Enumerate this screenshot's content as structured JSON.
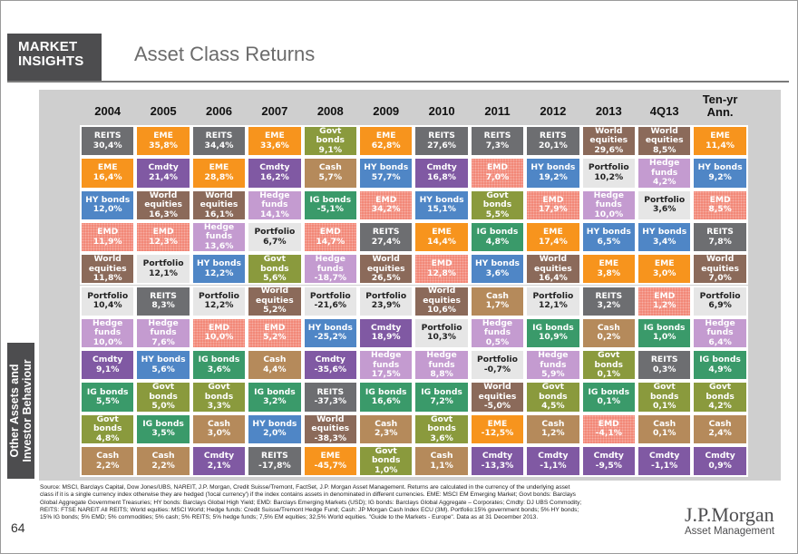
{
  "header": {
    "brand_line1": "MARKET",
    "brand_line2": "INSIGHTS",
    "title": "Asset Class Returns"
  },
  "sidebar": {
    "line1": "Other Assets and",
    "line2": "Investor Behaviour"
  },
  "page_number": "64",
  "colors": {
    "REITS": "#6d6e71",
    "EME": "#f7941d",
    "Cmdty": "#8059a3",
    "HY bonds": "#4f86c6",
    "World equities": "#8b6a5a",
    "Portfolio": "#e6e6e6",
    "Hedge funds": "#c49bd0",
    "EMD": "#f28474",
    "Govt bonds": "#8a9a3d",
    "Cash": "#b58a5b",
    "IG bonds": "#3a9a6a"
  },
  "chart_data": {
    "type": "table",
    "title": "Asset Class Returns",
    "columns": [
      "2004",
      "2005",
      "2006",
      "2007",
      "2008",
      "2009",
      "2010",
      "2011",
      "2012",
      "2013",
      "4Q13",
      "Ten-yr Ann."
    ],
    "rows": [
      [
        {
          "a": "REITS",
          "v": "30,4%"
        },
        {
          "a": "EME",
          "v": "35,8%"
        },
        {
          "a": "REITS",
          "v": "34,4%"
        },
        {
          "a": "EME",
          "v": "33,6%"
        },
        {
          "a": "Govt bonds",
          "v": "9,1%"
        },
        {
          "a": "EME",
          "v": "62,8%"
        },
        {
          "a": "REITS",
          "v": "27,6%"
        },
        {
          "a": "REITS",
          "v": "7,3%"
        },
        {
          "a": "REITS",
          "v": "20,1%"
        },
        {
          "a": "World equities",
          "v": "29,6%"
        },
        {
          "a": "World equities",
          "v": "8,5%"
        },
        {
          "a": "EME",
          "v": "11,4%"
        }
      ],
      [
        {
          "a": "EME",
          "v": "16,4%"
        },
        {
          "a": "Cmdty",
          "v": "21,4%"
        },
        {
          "a": "EME",
          "v": "28,8%"
        },
        {
          "a": "Cmdty",
          "v": "16,2%"
        },
        {
          "a": "Cash",
          "v": "5,7%"
        },
        {
          "a": "HY bonds",
          "v": "57,7%"
        },
        {
          "a": "Cmdty",
          "v": "16,8%"
        },
        {
          "a": "EMD",
          "v": "7,0%"
        },
        {
          "a": "HY bonds",
          "v": "19,2%"
        },
        {
          "a": "Portfolio",
          "v": "10,2%"
        },
        {
          "a": "Hedge funds",
          "v": "4,2%"
        },
        {
          "a": "HY bonds",
          "v": "9,2%"
        }
      ],
      [
        {
          "a": "HY bonds",
          "v": "12,0%"
        },
        {
          "a": "World equities",
          "v": "16,3%"
        },
        {
          "a": "World equities",
          "v": "16,1%"
        },
        {
          "a": "Hedge funds",
          "v": "14,1%"
        },
        {
          "a": "IG bonds",
          "v": "-5,1%"
        },
        {
          "a": "EMD",
          "v": "34,2%"
        },
        {
          "a": "HY bonds",
          "v": "15,1%"
        },
        {
          "a": "Govt bonds",
          "v": "5,5%"
        },
        {
          "a": "EMD",
          "v": "17,9%"
        },
        {
          "a": "Hedge funds",
          "v": "10,0%"
        },
        {
          "a": "Portfolio",
          "v": "3,6%"
        },
        {
          "a": "EMD",
          "v": "8,5%"
        }
      ],
      [
        {
          "a": "EMD",
          "v": "11,9%"
        },
        {
          "a": "EMD",
          "v": "12,3%"
        },
        {
          "a": "Hedge funds",
          "v": "13,6%"
        },
        {
          "a": "Portfolio",
          "v": "6,7%"
        },
        {
          "a": "EMD",
          "v": "14,7%"
        },
        {
          "a": "REITS",
          "v": "27,4%"
        },
        {
          "a": "EME",
          "v": "14,4%"
        },
        {
          "a": "IG bonds",
          "v": "4,8%"
        },
        {
          "a": "EME",
          "v": "17,4%"
        },
        {
          "a": "HY bonds",
          "v": "6,5%"
        },
        {
          "a": "HY bonds",
          "v": "3,4%"
        },
        {
          "a": "REITS",
          "v": "7,8%"
        }
      ],
      [
        {
          "a": "World equities",
          "v": "11,8%"
        },
        {
          "a": "Portfolio",
          "v": "12,1%"
        },
        {
          "a": "HY bonds",
          "v": "12,2%"
        },
        {
          "a": "Govt bonds",
          "v": "5,6%"
        },
        {
          "a": "Hedge funds",
          "v": "-18,7%"
        },
        {
          "a": "World equities",
          "v": "26,5%"
        },
        {
          "a": "EMD",
          "v": "12,8%"
        },
        {
          "a": "HY bonds",
          "v": "3,6%"
        },
        {
          "a": "World equities",
          "v": "16,4%"
        },
        {
          "a": "EME",
          "v": "3,8%"
        },
        {
          "a": "EME",
          "v": "3,0%"
        },
        {
          "a": "World equities",
          "v": "7,0%"
        }
      ],
      [
        {
          "a": "Portfolio",
          "v": "10,4%"
        },
        {
          "a": "REITS",
          "v": "8,3%"
        },
        {
          "a": "Portfolio",
          "v": "12,2%"
        },
        {
          "a": "World equities",
          "v": "5,2%"
        },
        {
          "a": "Portfolio",
          "v": "-21,6%"
        },
        {
          "a": "Portfolio",
          "v": "23,9%"
        },
        {
          "a": "World equities",
          "v": "10,6%"
        },
        {
          "a": "Cash",
          "v": "1,7%"
        },
        {
          "a": "Portfolio",
          "v": "12,1%"
        },
        {
          "a": "REITS",
          "v": "3,2%"
        },
        {
          "a": "EMD",
          "v": "1,2%"
        },
        {
          "a": "Portfolio",
          "v": "6,9%"
        }
      ],
      [
        {
          "a": "Hedge funds",
          "v": "10,0%"
        },
        {
          "a": "Hedge funds",
          "v": "7,6%"
        },
        {
          "a": "EMD",
          "v": "10,0%"
        },
        {
          "a": "EMD",
          "v": "5,2%"
        },
        {
          "a": "HY bonds",
          "v": "-25,2%"
        },
        {
          "a": "Cmdty",
          "v": "18,9%"
        },
        {
          "a": "Portfolio",
          "v": "10,3%"
        },
        {
          "a": "Hedge funds",
          "v": "0,5%"
        },
        {
          "a": "IG bonds",
          "v": "10,9%"
        },
        {
          "a": "Cash",
          "v": "0,2%"
        },
        {
          "a": "IG bonds",
          "v": "1,0%"
        },
        {
          "a": "Hedge funds",
          "v": "6,4%"
        }
      ],
      [
        {
          "a": "Cmdty",
          "v": "9,1%"
        },
        {
          "a": "HY bonds",
          "v": "5,6%"
        },
        {
          "a": "IG bonds",
          "v": "3,6%"
        },
        {
          "a": "Cash",
          "v": "4,4%"
        },
        {
          "a": "Cmdty",
          "v": "-35,6%"
        },
        {
          "a": "Hedge funds",
          "v": "17,5%"
        },
        {
          "a": "Hedge funds",
          "v": "8,8%"
        },
        {
          "a": "Portfolio",
          "v": "-0,7%"
        },
        {
          "a": "Hedge funds",
          "v": "5,9%"
        },
        {
          "a": "Govt bonds",
          "v": "0,1%"
        },
        {
          "a": "REITS",
          "v": "0,3%"
        },
        {
          "a": "IG bonds",
          "v": "4,9%"
        }
      ],
      [
        {
          "a": "IG bonds",
          "v": "5,5%"
        },
        {
          "a": "Govt bonds",
          "v": "5,0%"
        },
        {
          "a": "Govt bonds",
          "v": "3,3%"
        },
        {
          "a": "IG bonds",
          "v": "3,2%"
        },
        {
          "a": "REITS",
          "v": "-37,3%"
        },
        {
          "a": "IG bonds",
          "v": "16,6%"
        },
        {
          "a": "IG bonds",
          "v": "7,2%"
        },
        {
          "a": "World equities",
          "v": "-5,0%"
        },
        {
          "a": "Govt bonds",
          "v": "4,5%"
        },
        {
          "a": "IG bonds",
          "v": "0,1%"
        },
        {
          "a": "Govt bonds",
          "v": "0,1%"
        },
        {
          "a": "Govt bonds",
          "v": "4,2%"
        }
      ],
      [
        {
          "a": "Govt bonds",
          "v": "4,8%"
        },
        {
          "a": "IG bonds",
          "v": "3,5%"
        },
        {
          "a": "Cash",
          "v": "3,0%"
        },
        {
          "a": "HY bonds",
          "v": "2,0%"
        },
        {
          "a": "World equities",
          "v": "-38,3%"
        },
        {
          "a": "Cash",
          "v": "2,3%"
        },
        {
          "a": "Govt bonds",
          "v": "3,6%"
        },
        {
          "a": "EME",
          "v": "-12,5%"
        },
        {
          "a": "Cash",
          "v": "1,2%"
        },
        {
          "a": "EMD",
          "v": "-4,1%"
        },
        {
          "a": "Cash",
          "v": "0,1%"
        },
        {
          "a": "Cash",
          "v": "2,4%"
        }
      ],
      [
        {
          "a": "Cash",
          "v": "2,2%"
        },
        {
          "a": "Cash",
          "v": "2,2%"
        },
        {
          "a": "Cmdty",
          "v": "2,1%"
        },
        {
          "a": "REITS",
          "v": "-17,8%"
        },
        {
          "a": "EME",
          "v": "-45,7%"
        },
        {
          "a": "Govt bonds",
          "v": "1,0%"
        },
        {
          "a": "Cash",
          "v": "1,1%"
        },
        {
          "a": "Cmdty",
          "v": "-13,3%"
        },
        {
          "a": "Cmdty",
          "v": "-1,1%"
        },
        {
          "a": "Cmdty",
          "v": "-9,5%"
        },
        {
          "a": "Cmdty",
          "v": "-1,1%"
        },
        {
          "a": "Cmdty",
          "v": "0,9%"
        }
      ]
    ]
  },
  "footer": {
    "source_lines": [
      "Source: MSCI, Barclays Capital, Dow Jones/UBS, NAREIT, J.P. Morgan, Credit Suisse/Tremont, FactSet, J.P. Morgan Asset Management. Returns are calculated in the currency of the underlying asset",
      "class if it is a single currency index otherwise they are hedged ('local currency') if the index contains assets in denominated in different currencies. EME: MSCI EM Emerging Market; Govt bonds: Barclays",
      "Global Aggregate Government Treasuries; HY bonds: Barclays Global High Yield; EMD: Barclays Emerging Markets (USD); IG bonds: Barclays Global Aggregate – Corporates; Cmdty: DJ UBS Commodity;",
      "REITS: FTSE NAREIT All REITS; World equities: MSCI World; Hedge funds: Credit Suisse/Tremont Hedge Fund; Cash: JP Morgan Cash Index ECU (3M). Portfolio:15% government bonds; 5% HY bonds;",
      "15% IG bonds; 5% EMD; 5% commodities; 5% cash; 5% REITS; 5% hedge funds; 7,5% EM equities; 32,5% World equities. \"Guide to the Markets - Europe\". Data as at 31 December 2013."
    ],
    "logo_name": "J.P.Morgan",
    "logo_sub": "Asset Management"
  }
}
